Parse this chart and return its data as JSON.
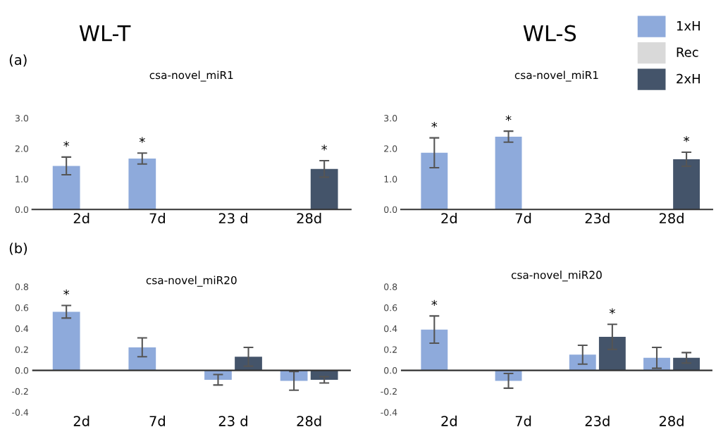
{
  "chart_data": [
    {
      "type": "bar",
      "title": "csa-novel_miR1",
      "categories": [
        "2d",
        "7d",
        "23 d",
        "28d"
      ],
      "series": [
        {
          "color": "#8eaadb",
          "values": [
            1.43,
            1.67,
            null,
            null
          ],
          "errors": [
            0.29,
            0.18,
            null,
            null
          ],
          "value_labels": [
            "*",
            "*",
            null,
            null
          ]
        },
        {
          "color": "#d9d9d9",
          "values": [
            null,
            null,
            null,
            null
          ]
        },
        {
          "color": "#44546a",
          "values": [
            null,
            null,
            null,
            1.33
          ],
          "errors": [
            null,
            null,
            null,
            0.27
          ],
          "value_labels": [
            null,
            null,
            null,
            "*"
          ]
        }
      ],
      "ylim": [
        0,
        3
      ],
      "yticks": [
        {
          "value": 0,
          "label": "0.0"
        },
        {
          "value": 1,
          "label": "1.0"
        },
        {
          "value": 2,
          "label": "2.0"
        },
        {
          "value": 3,
          "label": "3.0"
        }
      ],
      "annotations": [
        "WL-T",
        "(a)"
      ],
      "grid": false,
      "legend": false
    },
    {
      "type": "bar",
      "title": "csa-novel_miR1",
      "categories": [
        "2d",
        "7d",
        "23d",
        "28d"
      ],
      "series": [
        {
          "name": "1xH",
          "color": "#8eaadb",
          "values": [
            1.86,
            2.39,
            null,
            null
          ],
          "errors": [
            0.49,
            0.18,
            null,
            null
          ],
          "value_labels": [
            "*",
            "*",
            null,
            null
          ]
        },
        {
          "name": "Rec",
          "color": "#d9d9d9",
          "values": [
            null,
            null,
            null,
            null
          ]
        },
        {
          "name": "2xH",
          "color": "#44546a",
          "values": [
            null,
            null,
            null,
            1.65
          ],
          "errors": [
            null,
            null,
            null,
            0.23
          ],
          "value_labels": [
            null,
            null,
            null,
            "*"
          ]
        }
      ],
      "ylim": [
        0,
        3
      ],
      "yticks": [
        {
          "value": 0,
          "label": "0.0"
        },
        {
          "value": 1,
          "label": "1.0"
        },
        {
          "value": 2,
          "label": "2.0"
        },
        {
          "value": 3,
          "label": "3.0"
        }
      ],
      "annotations": [
        "WL-S"
      ],
      "grid": false,
      "legend": "top right"
    },
    {
      "type": "bar",
      "title": "csa-novel_miR20",
      "categories": [
        "2d",
        "7d",
        "23 d",
        "28d"
      ],
      "series": [
        {
          "color": "#8eaadb",
          "values": [
            0.56,
            0.22,
            -0.09,
            -0.1
          ],
          "errors": [
            0.06,
            0.09,
            0.05,
            0.09
          ],
          "value_labels": [
            "*",
            null,
            null,
            null
          ]
        },
        {
          "color": "#d9d9d9",
          "values": [
            null,
            null,
            null,
            null
          ]
        },
        {
          "color": "#44546a",
          "values": [
            null,
            null,
            0.13,
            -0.09
          ],
          "errors": [
            null,
            null,
            0.09,
            0.03
          ]
        }
      ],
      "ylim": [
        -0.4,
        0.8
      ],
      "yticks": [
        {
          "value": -0.4,
          "label": "-0.4"
        },
        {
          "value": -0.2,
          "label": "-0.2"
        },
        {
          "value": 0,
          "label": "0.0"
        },
        {
          "value": 0.2,
          "label": "0.2"
        },
        {
          "value": 0.4,
          "label": "0.4"
        },
        {
          "value": 0.6,
          "label": "0.6"
        },
        {
          "value": 0.8,
          "label": "0.8"
        }
      ],
      "annotations": [
        "(b)"
      ],
      "ref_lines": [
        {
          "axis": "y",
          "value": 0,
          "color": "#333333"
        }
      ],
      "grid": false,
      "legend": false
    },
    {
      "type": "bar",
      "title": "csa-novel_miR20",
      "categories": [
        "2d",
        "7d",
        "23d",
        "28d"
      ],
      "series": [
        {
          "color": "#8eaadb",
          "values": [
            0.39,
            -0.1,
            0.15,
            0.12
          ],
          "errors": [
            0.13,
            0.07,
            0.09,
            0.1
          ],
          "value_labels": [
            "*",
            null,
            null,
            null
          ]
        },
        {
          "color": "#d9d9d9",
          "values": [
            null,
            null,
            null,
            null
          ]
        },
        {
          "color": "#44546a",
          "values": [
            null,
            null,
            0.32,
            0.12
          ],
          "errors": [
            null,
            null,
            0.12,
            0.05
          ],
          "value_labels": [
            null,
            null,
            "*",
            null
          ]
        }
      ],
      "ref_lines": [
        {
          "axis": "y",
          "value": 0,
          "color": "#333333"
        }
      ],
      "ylim": [
        -0.4,
        0.8
      ],
      "yticks": [
        {
          "value": -0.4,
          "label": "-0.4"
        },
        {
          "value": -0.2,
          "label": "-0.2"
        },
        {
          "value": 0,
          "label": "0.0"
        },
        {
          "value": 0.2,
          "label": "0.2"
        },
        {
          "value": 0.4,
          "label": "0.4"
        },
        {
          "value": 0.6,
          "label": "0.6"
        },
        {
          "value": 0.8,
          "label": "0.8"
        }
      ],
      "grid": false,
      "legend": false
    }
  ]
}
